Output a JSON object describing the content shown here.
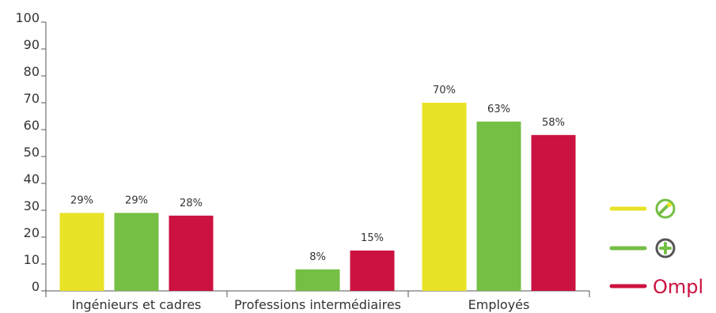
{
  "chart_data": {
    "type": "bar",
    "title": "",
    "xlabel": "",
    "ylabel": "",
    "ylim": [
      0,
      100
    ],
    "yticks": [
      0,
      10,
      20,
      30,
      40,
      50,
      60,
      70,
      80,
      90,
      100
    ],
    "grid": false,
    "categories": [
      "Ingénieurs et cadres",
      "Professions intermédiaires",
      "Employés"
    ],
    "series": [
      {
        "color": "#e8e326",
        "values": [
          29,
          0,
          70
        ],
        "labels": [
          "29%",
          "",
          "70%"
        ],
        "legend_icon": "tools-icon"
      },
      {
        "color": "#74bf44",
        "values": [
          29,
          8,
          63
        ],
        "labels": [
          "29%",
          "8%",
          "63%"
        ],
        "legend_icon": "plus-cross-icon"
      },
      {
        "color": "#cc1240",
        "values": [
          28,
          15,
          58
        ],
        "labels": [
          "28%",
          "15%",
          "58%"
        ],
        "legend_icon": "ompl-logo"
      }
    ],
    "legend_placement": "right"
  },
  "legend": {
    "ompl_text": "Ompl"
  }
}
